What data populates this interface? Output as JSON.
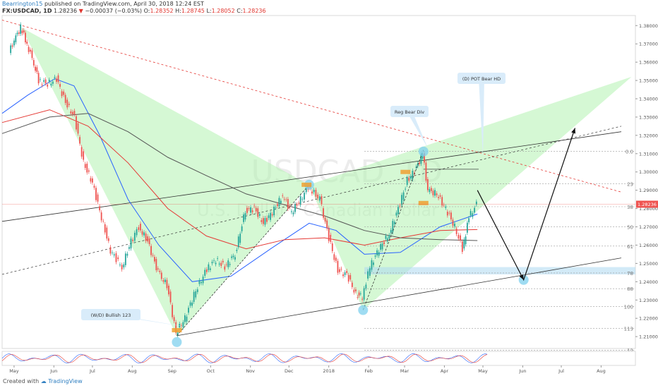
{
  "header": {
    "author": "Bearrington15",
    "published_text": "published on TradingView.com, April 30, 2018 12:24 EST",
    "symbol": "FX:USDCAD, 1D",
    "last": "1.28236",
    "change": "−0.00037 (−0.03%)",
    "o_label": "O:",
    "o_value": "1.28352",
    "h_label": "H:",
    "h_value": "1.28745",
    "l_label": "L:",
    "l_value": "1.28052",
    "c_label": "C:",
    "c_value": "1.28236"
  },
  "footer": {
    "created_with": "Created with",
    "brand": "TradingView"
  },
  "colors": {
    "up": "#26a69a",
    "down": "#ef5350",
    "pattern": "#b3f3b0",
    "sma_fast": "#2962ff",
    "sma_mid": "#e53935",
    "sma_slow": "#555555",
    "trend_red": "#e53935",
    "highlight": "#add8f0"
  },
  "chart_data": {
    "type": "candlestick",
    "watermark": {
      "symbol": "USDCAD",
      "interval": "1D",
      "description": "U.S. Dollar / Canadian Dollar"
    },
    "x_axis": {
      "ticks": [
        "May",
        "Jun",
        "Jul",
        "Aug",
        "Sep",
        "Oct",
        "Nov",
        "Dec",
        "2018",
        "Feb",
        "Mar",
        "Apr",
        "May",
        "Jun",
        "Jul",
        "Aug"
      ]
    },
    "y_axis": {
      "ylim": [
        1.2035,
        1.3855
      ],
      "ticks": [
        "1.38000",
        "1.37000",
        "1.36000",
        "1.35000",
        "1.34000",
        "1.33000",
        "1.32000",
        "1.31000",
        "1.30000",
        "1.29000",
        "1.28000",
        "1.27000",
        "1.26000",
        "1.25000",
        "1.24000",
        "1.23000",
        "1.22000",
        "1.21000",
        "1.20000"
      ],
      "last_price_label": "1.28236",
      "last_price": 1.28236
    },
    "fib_labels": [
      {
        "label": "0.0",
        "price": 1.3113
      },
      {
        "label": "23",
        "price": 1.2935
      },
      {
        "label": "38",
        "price": 1.281
      },
      {
        "label": "50",
        "price": 1.27
      },
      {
        "label": "61",
        "price": 1.2595
      },
      {
        "label": "78",
        "price": 1.2448
      },
      {
        "label": "88",
        "price": 1.2362
      },
      {
        "label": "100",
        "price": 1.2265
      },
      {
        "label": "113",
        "price": 1.2144
      },
      {
        "label": "12",
        "price": 1.2025
      }
    ],
    "annotations": [
      {
        "text": "(W/D) Bullish 123"
      },
      {
        "text": "Reg Bear Div"
      },
      {
        "text": "(D) POT Bear HD"
      }
    ],
    "close_path": [
      [
        "2017-05-01",
        1.365
      ],
      [
        "2017-05-05",
        1.372
      ],
      [
        "2017-05-10",
        1.379
      ],
      [
        "2017-05-15",
        1.37
      ],
      [
        "2017-05-19",
        1.362
      ],
      [
        "2017-05-24",
        1.35
      ],
      [
        "2017-05-31",
        1.348
      ],
      [
        "2017-06-07",
        1.351
      ],
      [
        "2017-06-14",
        1.338
      ],
      [
        "2017-06-21",
        1.33
      ],
      [
        "2017-06-28",
        1.305
      ],
      [
        "2017-07-05",
        1.294
      ],
      [
        "2017-07-12",
        1.275
      ],
      [
        "2017-07-19",
        1.257
      ],
      [
        "2017-07-28",
        1.248
      ],
      [
        "2017-08-04",
        1.262
      ],
      [
        "2017-08-10",
        1.27
      ],
      [
        "2017-08-17",
        1.262
      ],
      [
        "2017-08-25",
        1.245
      ],
      [
        "2017-09-01",
        1.238
      ],
      [
        "2017-09-08",
        1.212
      ],
      [
        "2017-09-15",
        1.22
      ],
      [
        "2017-09-22",
        1.233
      ],
      [
        "2017-10-02",
        1.247
      ],
      [
        "2017-10-09",
        1.252
      ],
      [
        "2017-10-16",
        1.248
      ],
      [
        "2017-10-24",
        1.255
      ],
      [
        "2017-11-01",
        1.279
      ],
      [
        "2017-11-08",
        1.28
      ],
      [
        "2017-11-15",
        1.272
      ],
      [
        "2017-11-22",
        1.278
      ],
      [
        "2017-11-30",
        1.287
      ],
      [
        "2017-12-07",
        1.278
      ],
      [
        "2017-12-14",
        1.285
      ],
      [
        "2017-12-20",
        1.292
      ],
      [
        "2017-12-29",
        1.285
      ],
      [
        "2018-01-05",
        1.264
      ],
      [
        "2018-01-12",
        1.246
      ],
      [
        "2018-01-19",
        1.244
      ],
      [
        "2018-01-26",
        1.233
      ],
      [
        "2018-01-31",
        1.232
      ],
      [
        "2018-02-06",
        1.248
      ],
      [
        "2018-02-13",
        1.258
      ],
      [
        "2018-02-21",
        1.266
      ],
      [
        "2018-02-28",
        1.28
      ],
      [
        "2018-03-07",
        1.295
      ],
      [
        "2018-03-14",
        1.302
      ],
      [
        "2018-03-19",
        1.31
      ],
      [
        "2018-03-23",
        1.29
      ],
      [
        "2018-03-30",
        1.288
      ],
      [
        "2018-04-06",
        1.28
      ],
      [
        "2018-04-13",
        1.27
      ],
      [
        "2018-04-19",
        1.258
      ],
      [
        "2018-04-24",
        1.275
      ],
      [
        "2018-04-30",
        1.28236
      ]
    ],
    "moving_averages": [
      {
        "name": "",
        "color": "#2962ff",
        "points": [
          [
            "2017-04-25",
            1.332
          ],
          [
            "2017-05-15",
            1.342
          ],
          [
            "2017-06-05",
            1.351
          ],
          [
            "2017-06-20",
            1.347
          ],
          [
            "2017-07-10",
            1.32
          ],
          [
            "2017-08-01",
            1.285
          ],
          [
            "2017-08-25",
            1.26
          ],
          [
            "2017-09-20",
            1.24
          ],
          [
            "2017-10-20",
            1.243
          ],
          [
            "2017-11-20",
            1.258
          ],
          [
            "2017-12-20",
            1.272
          ],
          [
            "2018-01-10",
            1.268
          ],
          [
            "2018-02-01",
            1.255
          ],
          [
            "2018-03-01",
            1.256
          ],
          [
            "2018-04-01",
            1.27
          ],
          [
            "2018-04-30",
            1.277
          ]
        ]
      },
      {
        "name": "",
        "color": "#e53935",
        "points": [
          [
            "2017-04-25",
            1.327
          ],
          [
            "2017-06-01",
            1.334
          ],
          [
            "2017-07-01",
            1.325
          ],
          [
            "2017-08-01",
            1.305
          ],
          [
            "2017-09-01",
            1.28
          ],
          [
            "2017-10-01",
            1.265
          ],
          [
            "2017-11-01",
            1.258
          ],
          [
            "2017-12-01",
            1.263
          ],
          [
            "2018-01-01",
            1.264
          ],
          [
            "2018-02-01",
            1.26
          ],
          [
            "2018-03-01",
            1.264
          ],
          [
            "2018-04-01",
            1.268
          ],
          [
            "2018-04-30",
            1.2685
          ]
        ]
      },
      {
        "name": "",
        "color": "#555555",
        "points": [
          [
            "2017-04-25",
            1.321
          ],
          [
            "2017-06-01",
            1.33
          ],
          [
            "2017-07-01",
            1.332
          ],
          [
            "2017-08-01",
            1.322
          ],
          [
            "2017-09-01",
            1.308
          ],
          [
            "2017-10-01",
            1.298
          ],
          [
            "2017-11-01",
            1.288
          ],
          [
            "2017-12-01",
            1.282
          ],
          [
            "2018-01-01",
            1.276
          ],
          [
            "2018-02-01",
            1.268
          ],
          [
            "2018-03-01",
            1.264
          ],
          [
            "2018-04-01",
            1.263
          ],
          [
            "2018-04-30",
            1.2625
          ]
        ]
      }
    ],
    "projection": [
      [
        "2018-04-30",
        1.29
      ],
      [
        "2018-06-05",
        1.241
      ],
      [
        "2018-07-15",
        1.324
      ]
    ],
    "support_trendline": [
      [
        "2017-09-08",
        1.2105
      ],
      [
        "2018-08-20",
        1.253
      ]
    ],
    "resistance_trendline": [
      [
        "2017-04-25",
        1.244
      ],
      [
        "2018-08-20",
        1.325
      ]
    ],
    "descending_trendline": [
      [
        "2017-04-25",
        1.383
      ],
      [
        "2018-08-20",
        1.289
      ]
    ]
  }
}
